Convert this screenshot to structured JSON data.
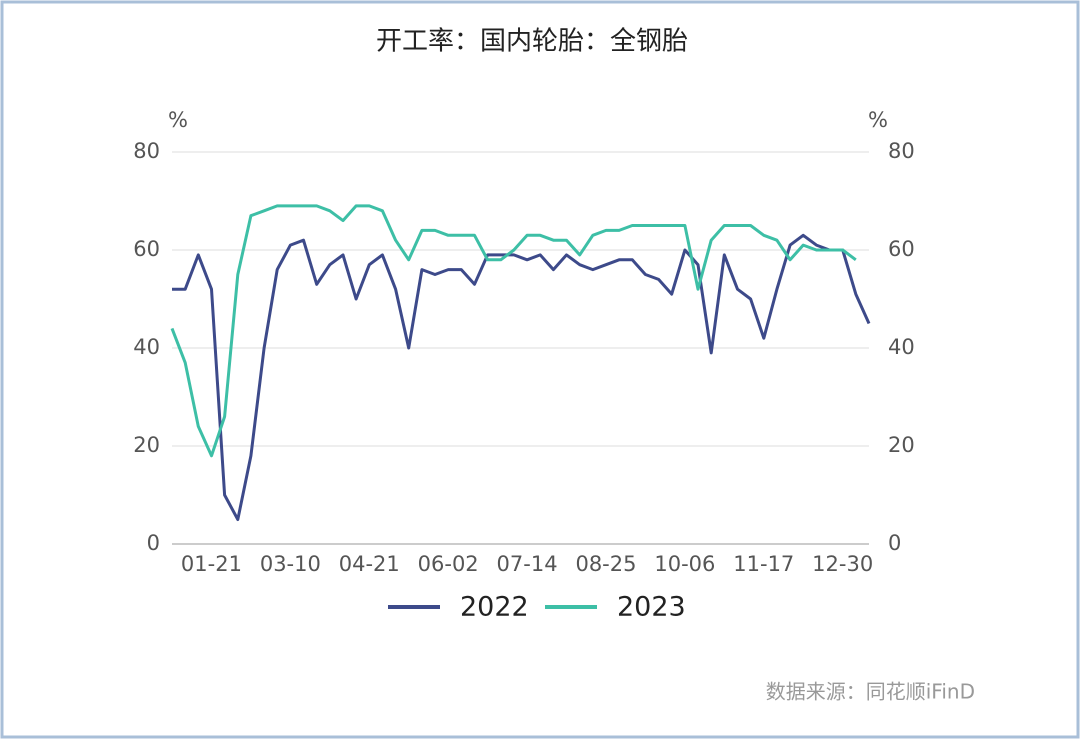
{
  "chart_data": {
    "type": "line",
    "title": "开工率：国内轮胎：全钢胎",
    "y_unit": "%",
    "y2_unit": "%",
    "source": "数据来源：同花顺iFinD",
    "categories": [
      null,
      null,
      null,
      "01-21",
      null,
      null,
      null,
      null,
      null,
      "03-10",
      null,
      null,
      null,
      null,
      null,
      "04-21",
      null,
      null,
      null,
      null,
      null,
      "06-02",
      null,
      null,
      null,
      null,
      null,
      "07-14",
      null,
      null,
      null,
      null,
      null,
      "08-25",
      null,
      null,
      null,
      null,
      null,
      "10-06",
      null,
      null,
      null,
      null,
      null,
      "11-17",
      null,
      null,
      null,
      null,
      null,
      "12-30",
      null,
      null
    ],
    "series": [
      {
        "name": "2022",
        "color": "#3d4a8a",
        "values": [
          52,
          52,
          59,
          52,
          10,
          5,
          18,
          40,
          56,
          61,
          62,
          53,
          57,
          59,
          50,
          57,
          59,
          52,
          40,
          56,
          55,
          56,
          56,
          53,
          59,
          59,
          59,
          58,
          59,
          56,
          59,
          57,
          56,
          57,
          58,
          58,
          55,
          54,
          51,
          60,
          57,
          39,
          59,
          52,
          50,
          42,
          52,
          61,
          63,
          61,
          60,
          60,
          51,
          45
        ]
      },
      {
        "name": "2023",
        "color": "#3dbfa6",
        "axis": "y2",
        "values": [
          44,
          37,
          24,
          18,
          26,
          55,
          67,
          68,
          69,
          69,
          69,
          69,
          68,
          66,
          69,
          69,
          68,
          62,
          58,
          64,
          64,
          63,
          63,
          63,
          58,
          58,
          60,
          63,
          63,
          62,
          62,
          59,
          63,
          64,
          64,
          65,
          65,
          65,
          65,
          65,
          52,
          62,
          65,
          65,
          65,
          63,
          62,
          58,
          61,
          60,
          60,
          60,
          58,
          null
        ]
      }
    ],
    "ylim": [
      0,
      80
    ],
    "yticks": [
      0,
      20,
      40,
      60,
      80
    ],
    "y2lim": [
      0,
      80
    ],
    "y2ticks": [
      0,
      20,
      40,
      60,
      80
    ],
    "grid": true,
    "legend": "bottom"
  }
}
